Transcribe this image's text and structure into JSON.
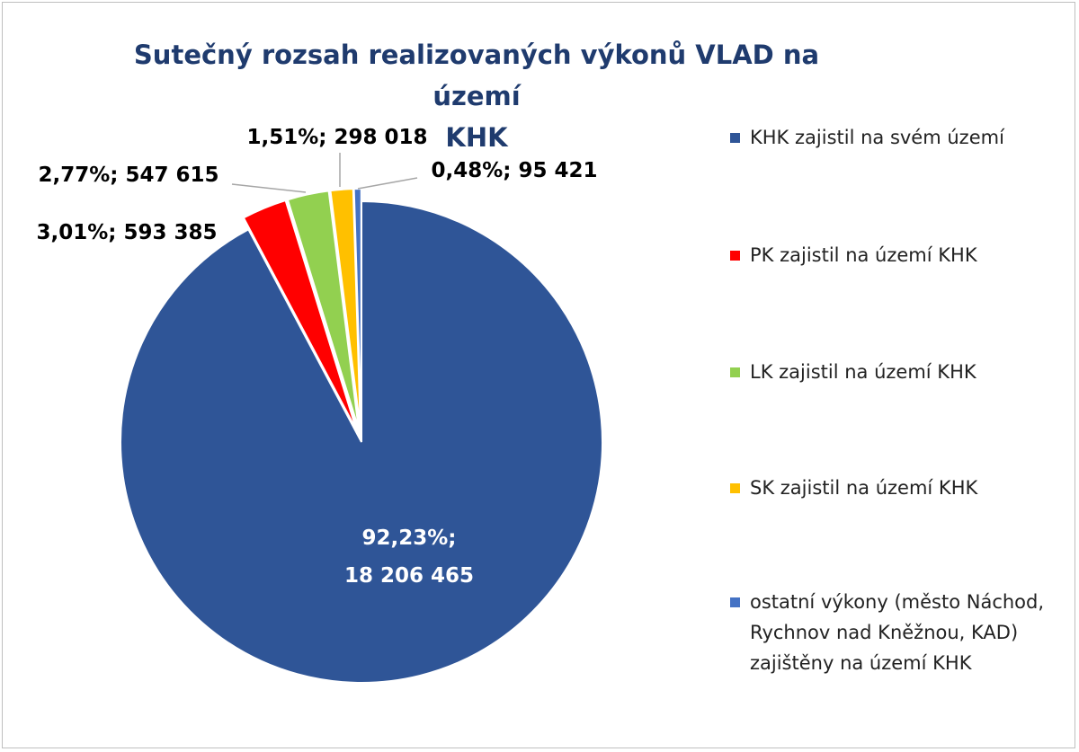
{
  "chart_data": {
    "type": "pie",
    "title": "Sutečný rozsah realizovaných výkonů VLAD na území KHK",
    "title_lines": [
      "Sutečný rozsah realizovaných výkonů VLAD na území",
      "KHK"
    ],
    "legend_position": "right",
    "slices": [
      {
        "name": "KHK zajistil na svém území",
        "value": 18206465,
        "percent": 92.23,
        "color": "#2f5597",
        "label": "92,23%;\n18 206 465"
      },
      {
        "name": "PK zajistil na území KHK",
        "value": 593385,
        "percent": 3.01,
        "color": "#ff0000",
        "label": "3,01%; 593 385"
      },
      {
        "name": "LK zajistil na území KHK",
        "value": 547615,
        "percent": 2.77,
        "color": "#92d050",
        "label": "2,77%; 547 615"
      },
      {
        "name": "SK zajistil na území KHK",
        "value": 298018,
        "percent": 1.51,
        "color": "#ffc000",
        "label": "1,51%; 298 018"
      },
      {
        "name": "ostatní výkony (město Náchod, Rychnov nad Kněžnou, KAD) zajištěny na území KHK",
        "value": 95421,
        "percent": 0.48,
        "color": "#4472c4",
        "label": "0,48%; 95 421"
      }
    ]
  }
}
